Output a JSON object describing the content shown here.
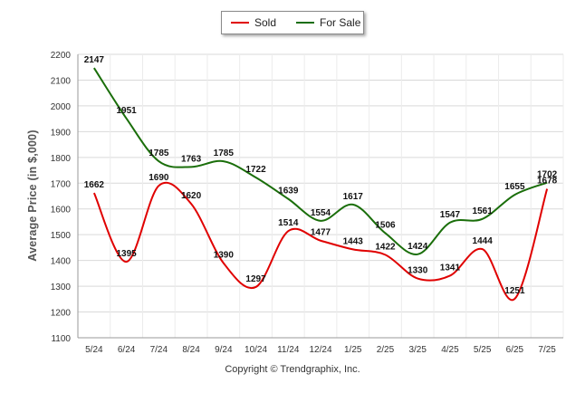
{
  "legend": [
    {
      "name": "Sold",
      "color": "#e00000"
    },
    {
      "name": "For Sale",
      "color": "#1a6e0a"
    }
  ],
  "footer": "Copyright © Trendgraphix, Inc.",
  "chart_data": {
    "type": "line",
    "ylabel": "Average Price (in $,000)",
    "xlabel": "",
    "title": "",
    "ylim": [
      1100,
      2200
    ],
    "yticks": [
      1100,
      1200,
      1300,
      1400,
      1500,
      1600,
      1700,
      1800,
      1900,
      2000,
      2100,
      2200
    ],
    "grid": true,
    "legend_position": "top-center",
    "categories": [
      "5/24",
      "6/24",
      "7/24",
      "8/24",
      "9/24",
      "10/24",
      "11/24",
      "12/24",
      "1/25",
      "2/25",
      "3/25",
      "4/25",
      "5/25",
      "6/25",
      "7/25"
    ],
    "series": [
      {
        "name": "Sold",
        "color": "#e00000",
        "values": [
          1662,
          1395,
          1690,
          1620,
          1390,
          1297,
          1514,
          1477,
          1443,
          1422,
          1330,
          1341,
          1444,
          1251,
          1678
        ]
      },
      {
        "name": "For Sale",
        "color": "#1a6e0a",
        "values": [
          2147,
          1951,
          1785,
          1763,
          1785,
          1722,
          1639,
          1554,
          1617,
          1506,
          1424,
          1547,
          1561,
          1655,
          1702
        ]
      }
    ]
  }
}
